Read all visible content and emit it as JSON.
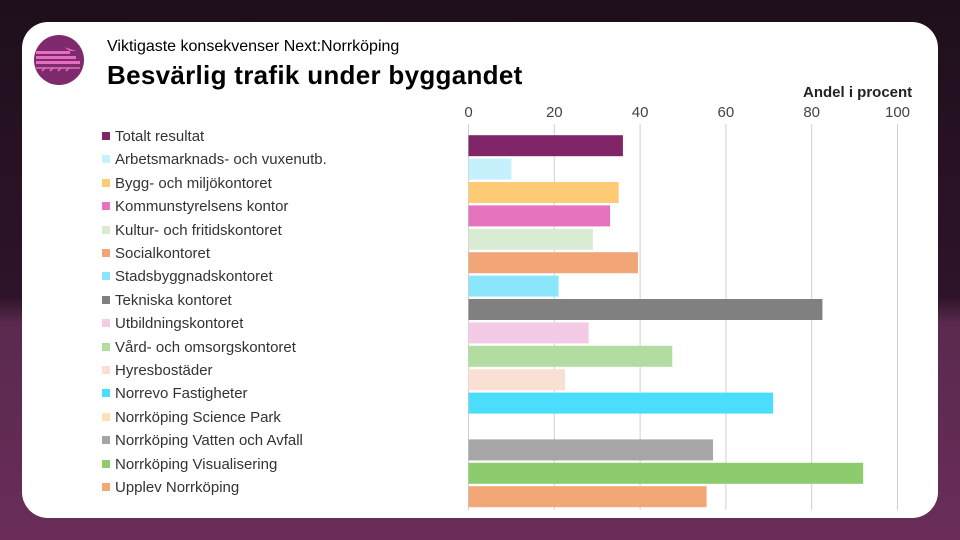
{
  "header": {
    "subtitle": "Viktigaste konsekvenser Next:Norrköping",
    "title": "Besvärlig trafik under byggandet"
  },
  "chart_data": {
    "type": "bar",
    "orientation": "horizontal",
    "title": "Besvärlig trafik under byggandet",
    "xlabel": "Andel i procent",
    "xlim": [
      0,
      100
    ],
    "ticks": [
      0,
      20,
      40,
      60,
      80,
      100
    ],
    "grid": true,
    "legend": "left",
    "categories": [
      "Totalt resultat",
      "Arbetsmarknads- och vuxenutb.",
      "Bygg- och miljökontoret",
      "Kommunstyrelsens kontor",
      "Kultur- och fritidskontoret",
      "Socialkontoret",
      "Stadsbyggnadskontoret",
      "Tekniska kontoret",
      "Utbildningskontoret",
      "Vård- och omsorgskontoret",
      "Hyresbostäder",
      "Norrevo Fastigheter",
      "Norrköping Science Park",
      "Norrköping Vatten och Avfall",
      "Norrköping Visualisering",
      "Upplev Norrköping"
    ],
    "values": [
      36,
      10,
      35,
      33,
      29,
      39.5,
      21,
      82.5,
      28,
      47.5,
      22.5,
      71,
      0,
      57,
      92,
      55.5
    ],
    "colors": [
      "#7f2568",
      "#c6f0fb",
      "#fdca76",
      "#e673bd",
      "#d9ecd3",
      "#f2a678",
      "#8be6fb",
      "#808080",
      "#f4cbe6",
      "#b2dca0",
      "#fae0d4",
      "#4bddfc",
      "#fde3b4",
      "#a6a6a6",
      "#8ccb6e",
      "#f3a776"
    ]
  }
}
